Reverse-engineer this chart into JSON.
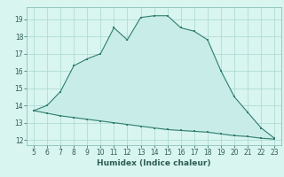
{
  "xlabel": "Humidex (Indice chaleur)",
  "x_upper": [
    5,
    6,
    7,
    8,
    9,
    10,
    11,
    12,
    13,
    14,
    15,
    16,
    17,
    18,
    19,
    20,
    21,
    22,
    23
  ],
  "y_upper": [
    13.7,
    14.0,
    14.8,
    16.3,
    16.7,
    17.0,
    18.5,
    17.8,
    19.1,
    19.2,
    19.2,
    18.5,
    18.3,
    17.8,
    16.0,
    14.5,
    13.6,
    12.7,
    12.1
  ],
  "x_lower": [
    5,
    6,
    7,
    8,
    9,
    10,
    11,
    12,
    13,
    14,
    15,
    16,
    17,
    18,
    19,
    20,
    21,
    22,
    23
  ],
  "y_lower": [
    13.7,
    13.55,
    13.4,
    13.3,
    13.2,
    13.1,
    13.0,
    12.9,
    12.8,
    12.7,
    12.6,
    12.55,
    12.5,
    12.45,
    12.35,
    12.25,
    12.2,
    12.1,
    12.05
  ],
  "line_color": "#2e7d6e",
  "fill_color": "#c8ece8",
  "bg_color": "#d8f5f0",
  "grid_color": "#a8d8d0",
  "ylim": [
    11.7,
    19.7
  ],
  "xlim": [
    4.5,
    23.5
  ],
  "yticks": [
    12,
    13,
    14,
    15,
    16,
    17,
    18,
    19
  ],
  "xticks": [
    5,
    6,
    7,
    8,
    9,
    10,
    11,
    12,
    13,
    14,
    15,
    16,
    17,
    18,
    19,
    20,
    21,
    22,
    23
  ],
  "tick_fontsize": 5.5,
  "xlabel_fontsize": 6.5
}
